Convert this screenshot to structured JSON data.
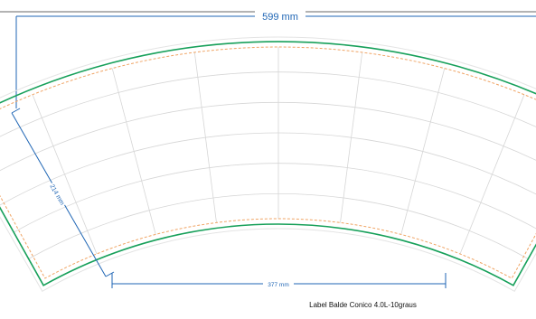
{
  "dimensions": {
    "top_width": "599 mm",
    "slant_height": "214 mm",
    "bottom_width": "377 mm"
  },
  "caption": "Label Balde Conico 4.0L-10graus",
  "colors": {
    "background": "#ffffff",
    "outline": "#17a05a",
    "safe_line": "#f0a464",
    "grid": "#d6d6d6",
    "dimension": "#1f66b5",
    "frame": "#9a9a9a"
  },
  "grid": {
    "columns": 8,
    "rows": 6
  }
}
